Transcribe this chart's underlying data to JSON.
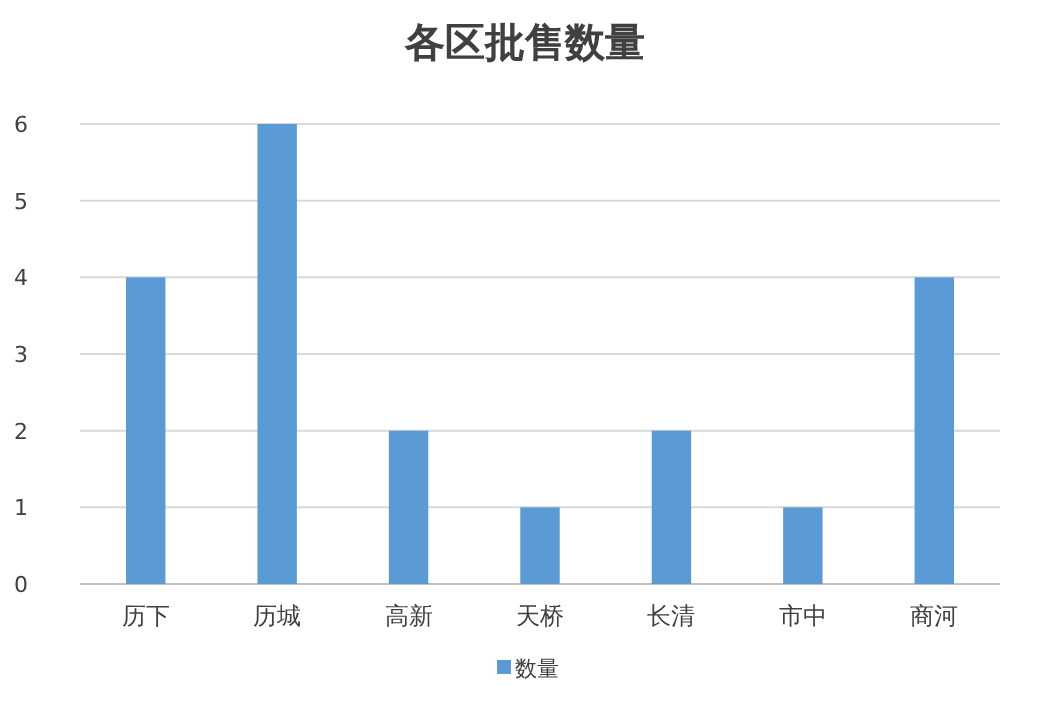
{
  "chart_data": {
    "type": "bar",
    "title": "各区批售数量",
    "categories": [
      "历下",
      "历城",
      "高新",
      "天桥",
      "长清",
      "市中",
      "商河"
    ],
    "series": [
      {
        "name": "数量",
        "color": "#5b9bd5",
        "values": [
          4,
          6,
          2,
          1,
          2,
          1,
          4
        ]
      }
    ],
    "ylim": [
      0,
      6
    ],
    "yticks": [
      0,
      1,
      2,
      3,
      4,
      5,
      6
    ],
    "grid": "y",
    "legend": "bottom"
  }
}
